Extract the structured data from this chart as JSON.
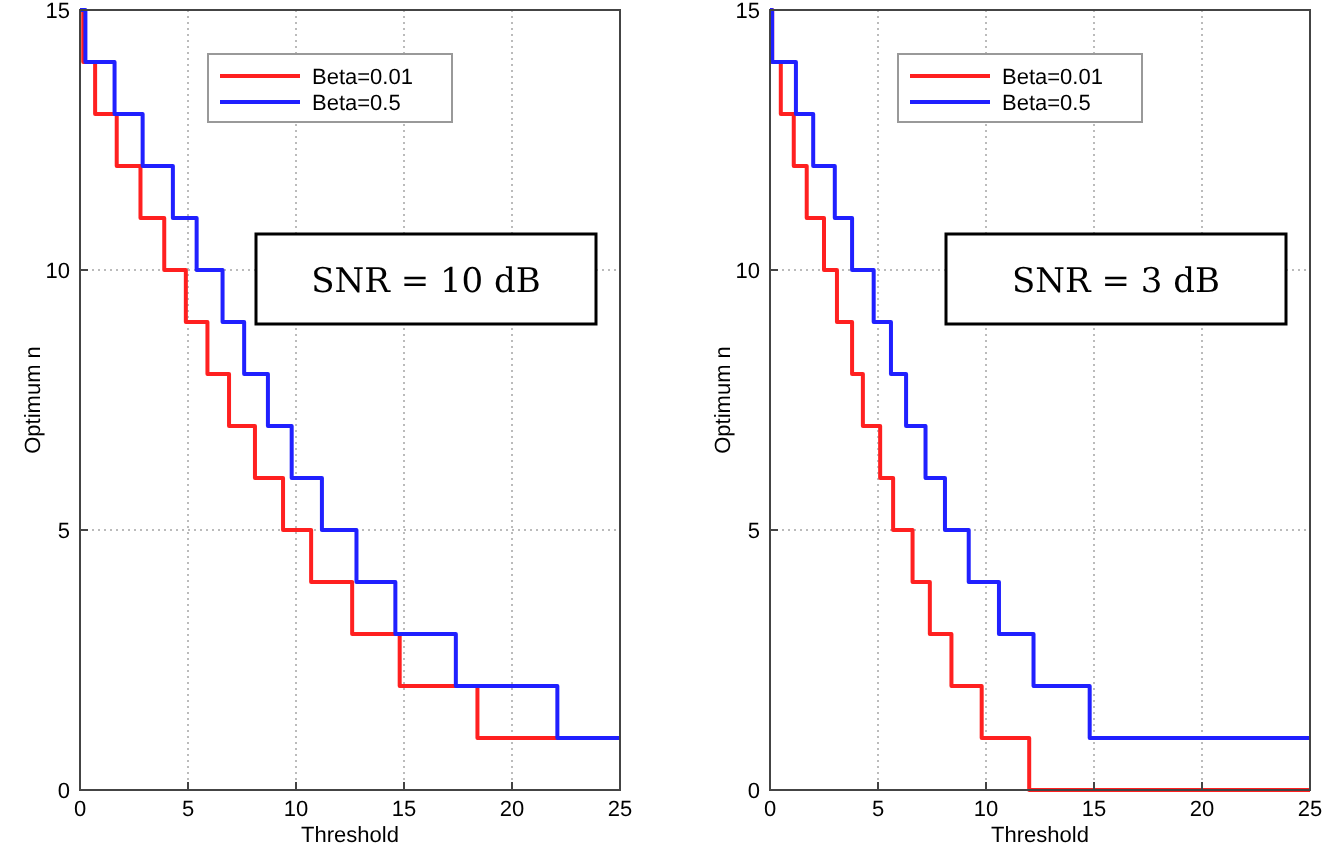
{
  "chart_data": [
    {
      "type": "step",
      "xlabel": "Threshold",
      "ylabel": "Optimum n",
      "annotations": [
        "SNR = 10 dB"
      ],
      "xlim": [
        0,
        25
      ],
      "ylim": [
        0,
        15
      ],
      "xticks": [
        0,
        5,
        10,
        15,
        20,
        25
      ],
      "yticks": [
        0,
        5,
        10,
        15
      ],
      "grid": true,
      "legend": "top",
      "series": [
        {
          "name": "Beta=0.01",
          "color": "#ff2020",
          "x": [
            0,
            0.15,
            0.7,
            1.7,
            2.8,
            3.9,
            4.9,
            5.9,
            6.9,
            8.1,
            9.4,
            10.7,
            12.6,
            14.8,
            18.4,
            22.1
          ],
          "values": [
            15,
            14,
            13,
            12,
            11,
            10,
            9,
            8,
            7,
            6,
            5,
            4,
            3,
            2,
            1,
            1
          ]
        },
        {
          "name": "Beta=0.5",
          "color": "#2020ff",
          "x": [
            0,
            0.25,
            1.6,
            2.9,
            4.3,
            5.4,
            6.6,
            7.6,
            8.7,
            9.8,
            11.2,
            12.8,
            14.6,
            17.4,
            22.1,
            25
          ],
          "values": [
            15,
            14,
            13,
            12,
            11,
            10,
            9,
            8,
            7,
            6,
            5,
            4,
            3,
            2,
            1,
            1
          ]
        }
      ]
    },
    {
      "type": "step",
      "xlabel": "Threshold",
      "ylabel": "Optimum n",
      "annotations": [
        "SNR = 3 dB"
      ],
      "xlim": [
        0,
        25
      ],
      "ylim": [
        0,
        15
      ],
      "xticks": [
        0,
        5,
        10,
        15,
        20,
        25
      ],
      "yticks": [
        0,
        5,
        10,
        15
      ],
      "grid": true,
      "legend": "top",
      "series": [
        {
          "name": "Beta=0.01",
          "color": "#ff2020",
          "x": [
            0,
            0.1,
            0.5,
            1.1,
            1.7,
            2.5,
            3.1,
            3.8,
            4.3,
            5.1,
            5.7,
            6.6,
            7.4,
            8.4,
            9.8,
            12.0,
            25
          ],
          "values": [
            15,
            14,
            13,
            12,
            11,
            10,
            9,
            8,
            7,
            6,
            5,
            4,
            3,
            2,
            1,
            0,
            0
          ]
        },
        {
          "name": "Beta=0.5",
          "color": "#2020ff",
          "x": [
            0,
            0.1,
            1.2,
            2.0,
            3.0,
            3.8,
            4.8,
            5.6,
            6.3,
            7.2,
            8.1,
            9.2,
            10.6,
            12.2,
            14.8,
            25
          ],
          "values": [
            15,
            14,
            13,
            12,
            11,
            10,
            9,
            8,
            7,
            6,
            5,
            4,
            3,
            2,
            1,
            1
          ]
        }
      ]
    }
  ]
}
